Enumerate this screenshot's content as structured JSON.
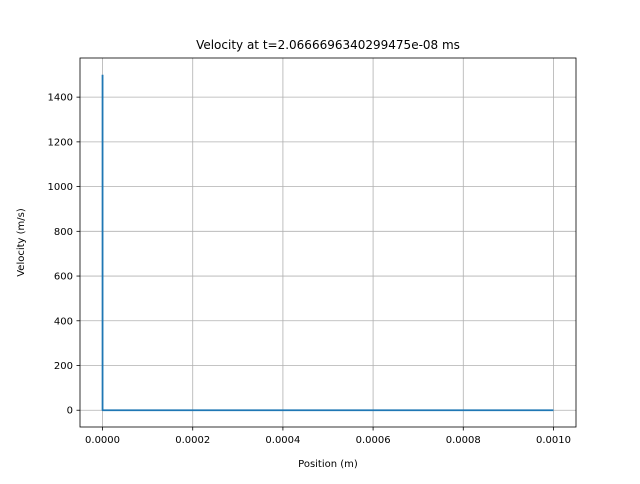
{
  "chart_data": {
    "type": "line",
    "title": "Velocity at t=2.0666696340299475e-08 ms",
    "xlabel": "Position (m)",
    "ylabel": "Velocity (m/s)",
    "xlim": [
      -5e-05,
      0.00105
    ],
    "ylim": [
      -75,
      1575
    ],
    "grid": true,
    "legend": "none",
    "x_ticks": [
      0.0,
      0.0002,
      0.0004,
      0.0006,
      0.0008,
      0.001
    ],
    "x_tick_labels": [
      "0.0000",
      "0.0002",
      "0.0004",
      "0.0006",
      "0.0008",
      "0.0010"
    ],
    "y_ticks": [
      0,
      200,
      400,
      600,
      800,
      1000,
      1200,
      1400
    ],
    "y_tick_labels": [
      "0",
      "200",
      "400",
      "600",
      "800",
      "1000",
      "1200",
      "1400"
    ],
    "series": [
      {
        "color": "#1f77b4",
        "x": [
          0.0,
          0.0,
          0.0,
          0.001
        ],
        "y": [
          1500,
          0,
          0,
          0
        ]
      }
    ]
  }
}
